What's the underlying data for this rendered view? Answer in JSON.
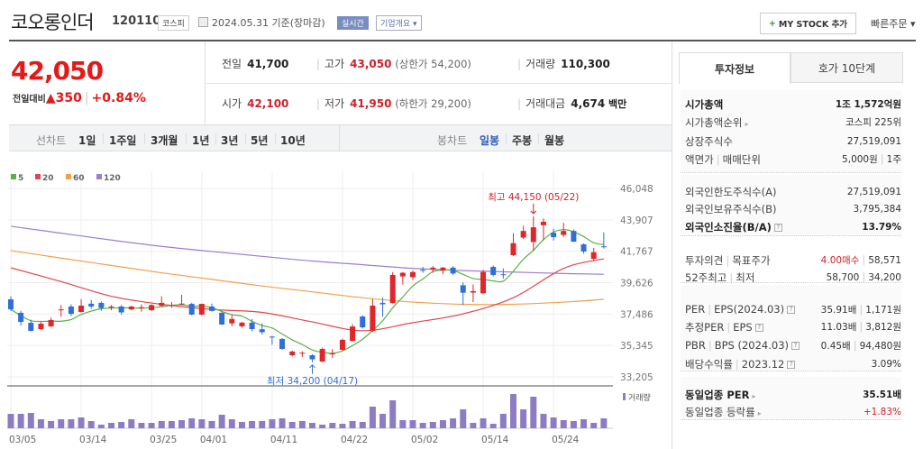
{
  "header": {
    "title": "코오롱인더",
    "code": "120110",
    "market": "코스피",
    "date": "2024.05.31 기준(장마감)",
    "realtime": "실시간",
    "overview": "기업개요 ▾",
    "mystock_plus": "+",
    "mystock": "MY STOCK 추가",
    "quick_order": "빠른주문 ▾",
    "calendar_icon": "calendar-icon"
  },
  "quote": {
    "price": "42,050",
    "change_label": "전일대비",
    "change_arrow": "▲",
    "change": "350",
    "change_pct": "+0.84%",
    "prev_label": "전일",
    "prev": "41,700",
    "high_label": "고가",
    "high": "43,050",
    "upper_limit": "(상한가 54,200)",
    "volume_label": "거래량",
    "volume": "110,300",
    "open_label": "시가",
    "open": "42,100",
    "low_label": "저가",
    "low": "41,950",
    "lower_limit": "(하한가 29,200)",
    "amount_label": "거래대금",
    "amount": "4,674",
    "amount_unit": "백만"
  },
  "toolbar": {
    "line_chart": "선차트",
    "periods": [
      "1일",
      "1주일",
      "3개월",
      "1년",
      "3년",
      "5년",
      "10년"
    ],
    "candle_chart": "봉차트",
    "candle_periods": [
      "일봉",
      "주봉",
      "월봉"
    ],
    "active_candle": "일봉"
  },
  "side": {
    "tabs": [
      "투자정보",
      "호가 10단계"
    ],
    "g1": [
      [
        "시가총액",
        "1조 1,572억원"
      ],
      [
        "시가총액순위",
        "코스피 225위"
      ],
      [
        "상장주식수",
        "27,519,091"
      ],
      [
        "액면가",
        "매매단위",
        "5,000원",
        "1주"
      ]
    ],
    "g2": [
      [
        "외국인한도주식수(A)",
        "27,519,091"
      ],
      [
        "외국인보유주식수(B)",
        "3,795,384"
      ],
      [
        "외국인소진율(B/A)",
        "13.79%"
      ]
    ],
    "g3": [
      [
        "투자의견",
        "목표주가",
        "4.00매수",
        "58,571"
      ],
      [
        "52주최고",
        "최저",
        "58,700",
        "34,200"
      ]
    ],
    "g4": [
      [
        "PER",
        "EPS(2024.03)",
        "35.91배",
        "1,171원"
      ],
      [
        "추정PER",
        "EPS",
        "11.03배",
        "3,812원"
      ],
      [
        "PBR",
        "BPS (2024.03)",
        "0.45배",
        "94,480원"
      ],
      [
        "배당수익률",
        "2023.12",
        "3.09%"
      ]
    ],
    "g5": [
      [
        "동일업종 PER",
        "35.51배"
      ],
      [
        "동일업종 등락률",
        "+1.83%"
      ]
    ]
  },
  "chart_data": {
    "type": "candlestick",
    "legend": [
      {
        "name": "5",
        "color": "#5cb04a"
      },
      {
        "name": "20",
        "color": "#e0474c"
      },
      {
        "name": "60",
        "color": "#f0a04b"
      },
      {
        "name": "120",
        "color": "#9a7fd1"
      }
    ],
    "volume_legend": "거래량",
    "up_color": "#e0262a",
    "down_color": "#2f6fd8",
    "volume_color": "#8e7cc3",
    "yticks": [
      46048,
      43907,
      41767,
      39626,
      37486,
      35345,
      33205
    ],
    "ylim": [
      33205,
      46048
    ],
    "xtick_labels": [
      {
        "i": 0,
        "label": "03/05"
      },
      {
        "i": 7,
        "label": "03/14"
      },
      {
        "i": 14,
        "label": "03/25"
      },
      {
        "i": 19,
        "label": "04/01"
      },
      {
        "i": 26,
        "label": "04/11"
      },
      {
        "i": 33,
        "label": "04/22"
      },
      {
        "i": 40,
        "label": "05/02"
      },
      {
        "i": 47,
        "label": "05/14"
      },
      {
        "i": 54,
        "label": "05/24"
      }
    ],
    "ohlc": [
      [
        38490,
        38700,
        37700,
        37810
      ],
      [
        37570,
        37700,
        36700,
        36950
      ],
      [
        36890,
        37100,
        36300,
        36340
      ],
      [
        36460,
        36950,
        36400,
        36830
      ],
      [
        36650,
        37250,
        36600,
        37080
      ],
      [
        37750,
        38100,
        37300,
        37800
      ],
      [
        38000,
        38150,
        37350,
        37500
      ],
      [
        37630,
        38500,
        37600,
        38060
      ],
      [
        38190,
        38450,
        37850,
        38000
      ],
      [
        38250,
        38350,
        37700,
        37900
      ],
      [
        37950,
        38100,
        37750,
        38000
      ],
      [
        38000,
        38100,
        37450,
        37600
      ],
      [
        37800,
        38050,
        37750,
        38000
      ],
      [
        37900,
        38150,
        37650,
        37950
      ],
      [
        37750,
        38150,
        37700,
        38100
      ],
      [
        38050,
        38700,
        38000,
        38250
      ],
      [
        38050,
        38300,
        37900,
        38100
      ],
      [
        38150,
        38800,
        38100,
        38200
      ],
      [
        38180,
        38250,
        37400,
        37450
      ],
      [
        37450,
        38200,
        37400,
        38180
      ],
      [
        38000,
        38200,
        37650,
        37700
      ],
      [
        37570,
        37650,
        36750,
        36770
      ],
      [
        36850,
        37450,
        36650,
        37150
      ],
      [
        36650,
        36950,
        36550,
        36900
      ],
      [
        36900,
        37150,
        36300,
        36460
      ],
      [
        36450,
        36850,
        36100,
        36250
      ],
      [
        35950,
        36000,
        35400,
        35900
      ],
      [
        35790,
        35850,
        35050,
        35110
      ],
      [
        34680,
        35000,
        34600,
        34930
      ],
      [
        34800,
        34950,
        34550,
        34850
      ],
      [
        34680,
        34750,
        34200,
        34400
      ],
      [
        34250,
        35200,
        34200,
        35110
      ],
      [
        34750,
        35100,
        34500,
        34800
      ],
      [
        35050,
        35800,
        35000,
        35730
      ],
      [
        35660,
        36800,
        35600,
        36640
      ],
      [
        37320,
        37400,
        36500,
        36580
      ],
      [
        36340,
        38500,
        36250,
        38060
      ],
      [
        38250,
        38600,
        37300,
        38150
      ],
      [
        38240,
        40350,
        38200,
        40150
      ],
      [
        40050,
        40350,
        39500,
        40300
      ],
      [
        40000,
        40450,
        39800,
        40350
      ],
      [
        40500,
        40700,
        40300,
        40450
      ],
      [
        40530,
        40750,
        40300,
        40650
      ],
      [
        40450,
        40700,
        40200,
        40650
      ],
      [
        40650,
        40750,
        40150,
        40250
      ],
      [
        39450,
        39650,
        38100,
        38940
      ],
      [
        38950,
        39500,
        38300,
        39050
      ],
      [
        38900,
        40500,
        38850,
        40350
      ],
      [
        40700,
        40800,
        40050,
        40150
      ],
      [
        40200,
        40600,
        39900,
        40150
      ],
      [
        41500,
        43000,
        41450,
        42320
      ],
      [
        42700,
        43500,
        42600,
        43150
      ],
      [
        42400,
        44150,
        41800,
        43400
      ],
      [
        43540,
        44000,
        42500,
        43780
      ],
      [
        43030,
        43300,
        42500,
        42730
      ],
      [
        42880,
        43700,
        42750,
        43150
      ],
      [
        43150,
        43250,
        42400,
        42420
      ],
      [
        42240,
        42300,
        41600,
        41750
      ],
      [
        41250,
        42000,
        41100,
        41700
      ],
      [
        42100,
        43050,
        41950,
        42050
      ]
    ],
    "volume": [
      160000,
      160000,
      170000,
      100000,
      80000,
      100000,
      100000,
      120000,
      80000,
      40000,
      60000,
      70000,
      100000,
      60000,
      60000,
      80000,
      80000,
      90000,
      110000,
      100000,
      80000,
      150000,
      100000,
      70000,
      80000,
      80000,
      100000,
      110000,
      70000,
      80000,
      60000,
      40000,
      60000,
      50000,
      80000,
      70000,
      240000,
      160000,
      310000,
      90000,
      90000,
      60000,
      70000,
      90000,
      110000,
      210000,
      60000,
      110000,
      50000,
      160000,
      380000,
      210000,
      350000,
      160000,
      120000,
      90000,
      80000,
      100000,
      60000,
      110300
    ],
    "ma_samples_every_5_days": {
      "20": [
        40640,
        39700,
        38700,
        38150,
        37800,
        37600,
        36950,
        36350,
        36900,
        37500,
        38600,
        40600,
        41250
      ],
      "60": [
        41810,
        41300,
        40800,
        40300,
        39850,
        39400,
        39000,
        38600,
        38300,
        38150,
        38150,
        38300,
        38490
      ],
      "120": [
        43470,
        43000,
        42530,
        42100,
        41750,
        41420,
        41100,
        40850,
        40600,
        40450,
        40350,
        40250,
        40200
      ]
    },
    "annotations": {
      "high": "최고 44,150 (05/22)",
      "high_index": 52,
      "high_value": 44150,
      "low": "최저 34,200 (04/17)",
      "low_index": 30,
      "low_value": 34200
    }
  }
}
